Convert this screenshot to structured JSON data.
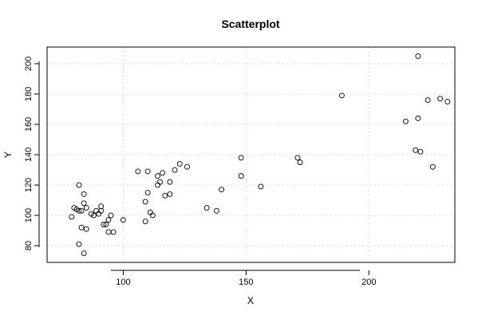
{
  "chart_data": {
    "type": "scatter",
    "title": "Scatterplot",
    "xlabel": "X",
    "ylabel": "Y",
    "xlim": [
      69,
      235
    ],
    "ylim": [
      69,
      211
    ],
    "xticks": [
      100,
      150,
      200
    ],
    "yticks": [
      80,
      100,
      120,
      140,
      160,
      180,
      200
    ],
    "grid": true,
    "points": [
      {
        "x": 79,
        "y": 99
      },
      {
        "x": 80,
        "y": 105
      },
      {
        "x": 81,
        "y": 104
      },
      {
        "x": 82,
        "y": 120
      },
      {
        "x": 82,
        "y": 81
      },
      {
        "x": 82,
        "y": 103
      },
      {
        "x": 83,
        "y": 92
      },
      {
        "x": 83,
        "y": 103
      },
      {
        "x": 84,
        "y": 75
      },
      {
        "x": 84,
        "y": 114
      },
      {
        "x": 84,
        "y": 108
      },
      {
        "x": 85,
        "y": 105
      },
      {
        "x": 85,
        "y": 91
      },
      {
        "x": 87,
        "y": 101
      },
      {
        "x": 88,
        "y": 100
      },
      {
        "x": 89,
        "y": 103
      },
      {
        "x": 90,
        "y": 101
      },
      {
        "x": 91,
        "y": 106
      },
      {
        "x": 91,
        "y": 103
      },
      {
        "x": 92,
        "y": 94
      },
      {
        "x": 93,
        "y": 94
      },
      {
        "x": 94,
        "y": 97
      },
      {
        "x": 94,
        "y": 89
      },
      {
        "x": 95,
        "y": 100
      },
      {
        "x": 96,
        "y": 89
      },
      {
        "x": 100,
        "y": 97
      },
      {
        "x": 106,
        "y": 129
      },
      {
        "x": 109,
        "y": 96
      },
      {
        "x": 109,
        "y": 109
      },
      {
        "x": 110,
        "y": 129
      },
      {
        "x": 110,
        "y": 115
      },
      {
        "x": 111,
        "y": 102
      },
      {
        "x": 112,
        "y": 100
      },
      {
        "x": 114,
        "y": 126
      },
      {
        "x": 114,
        "y": 120
      },
      {
        "x": 115,
        "y": 122
      },
      {
        "x": 116,
        "y": 128
      },
      {
        "x": 117,
        "y": 113
      },
      {
        "x": 119,
        "y": 122
      },
      {
        "x": 119,
        "y": 114
      },
      {
        "x": 121,
        "y": 130
      },
      {
        "x": 123,
        "y": 134
      },
      {
        "x": 126,
        "y": 132
      },
      {
        "x": 134,
        "y": 105
      },
      {
        "x": 138,
        "y": 103
      },
      {
        "x": 140,
        "y": 117
      },
      {
        "x": 148,
        "y": 138
      },
      {
        "x": 148,
        "y": 126
      },
      {
        "x": 156,
        "y": 119
      },
      {
        "x": 171,
        "y": 138
      },
      {
        "x": 172,
        "y": 135
      },
      {
        "x": 189,
        "y": 179
      },
      {
        "x": 215,
        "y": 162
      },
      {
        "x": 219,
        "y": 143
      },
      {
        "x": 220,
        "y": 205
      },
      {
        "x": 220,
        "y": 164
      },
      {
        "x": 221,
        "y": 142
      },
      {
        "x": 224,
        "y": 176
      },
      {
        "x": 226,
        "y": 132
      },
      {
        "x": 229,
        "y": 177
      },
      {
        "x": 232,
        "y": 175
      }
    ]
  }
}
